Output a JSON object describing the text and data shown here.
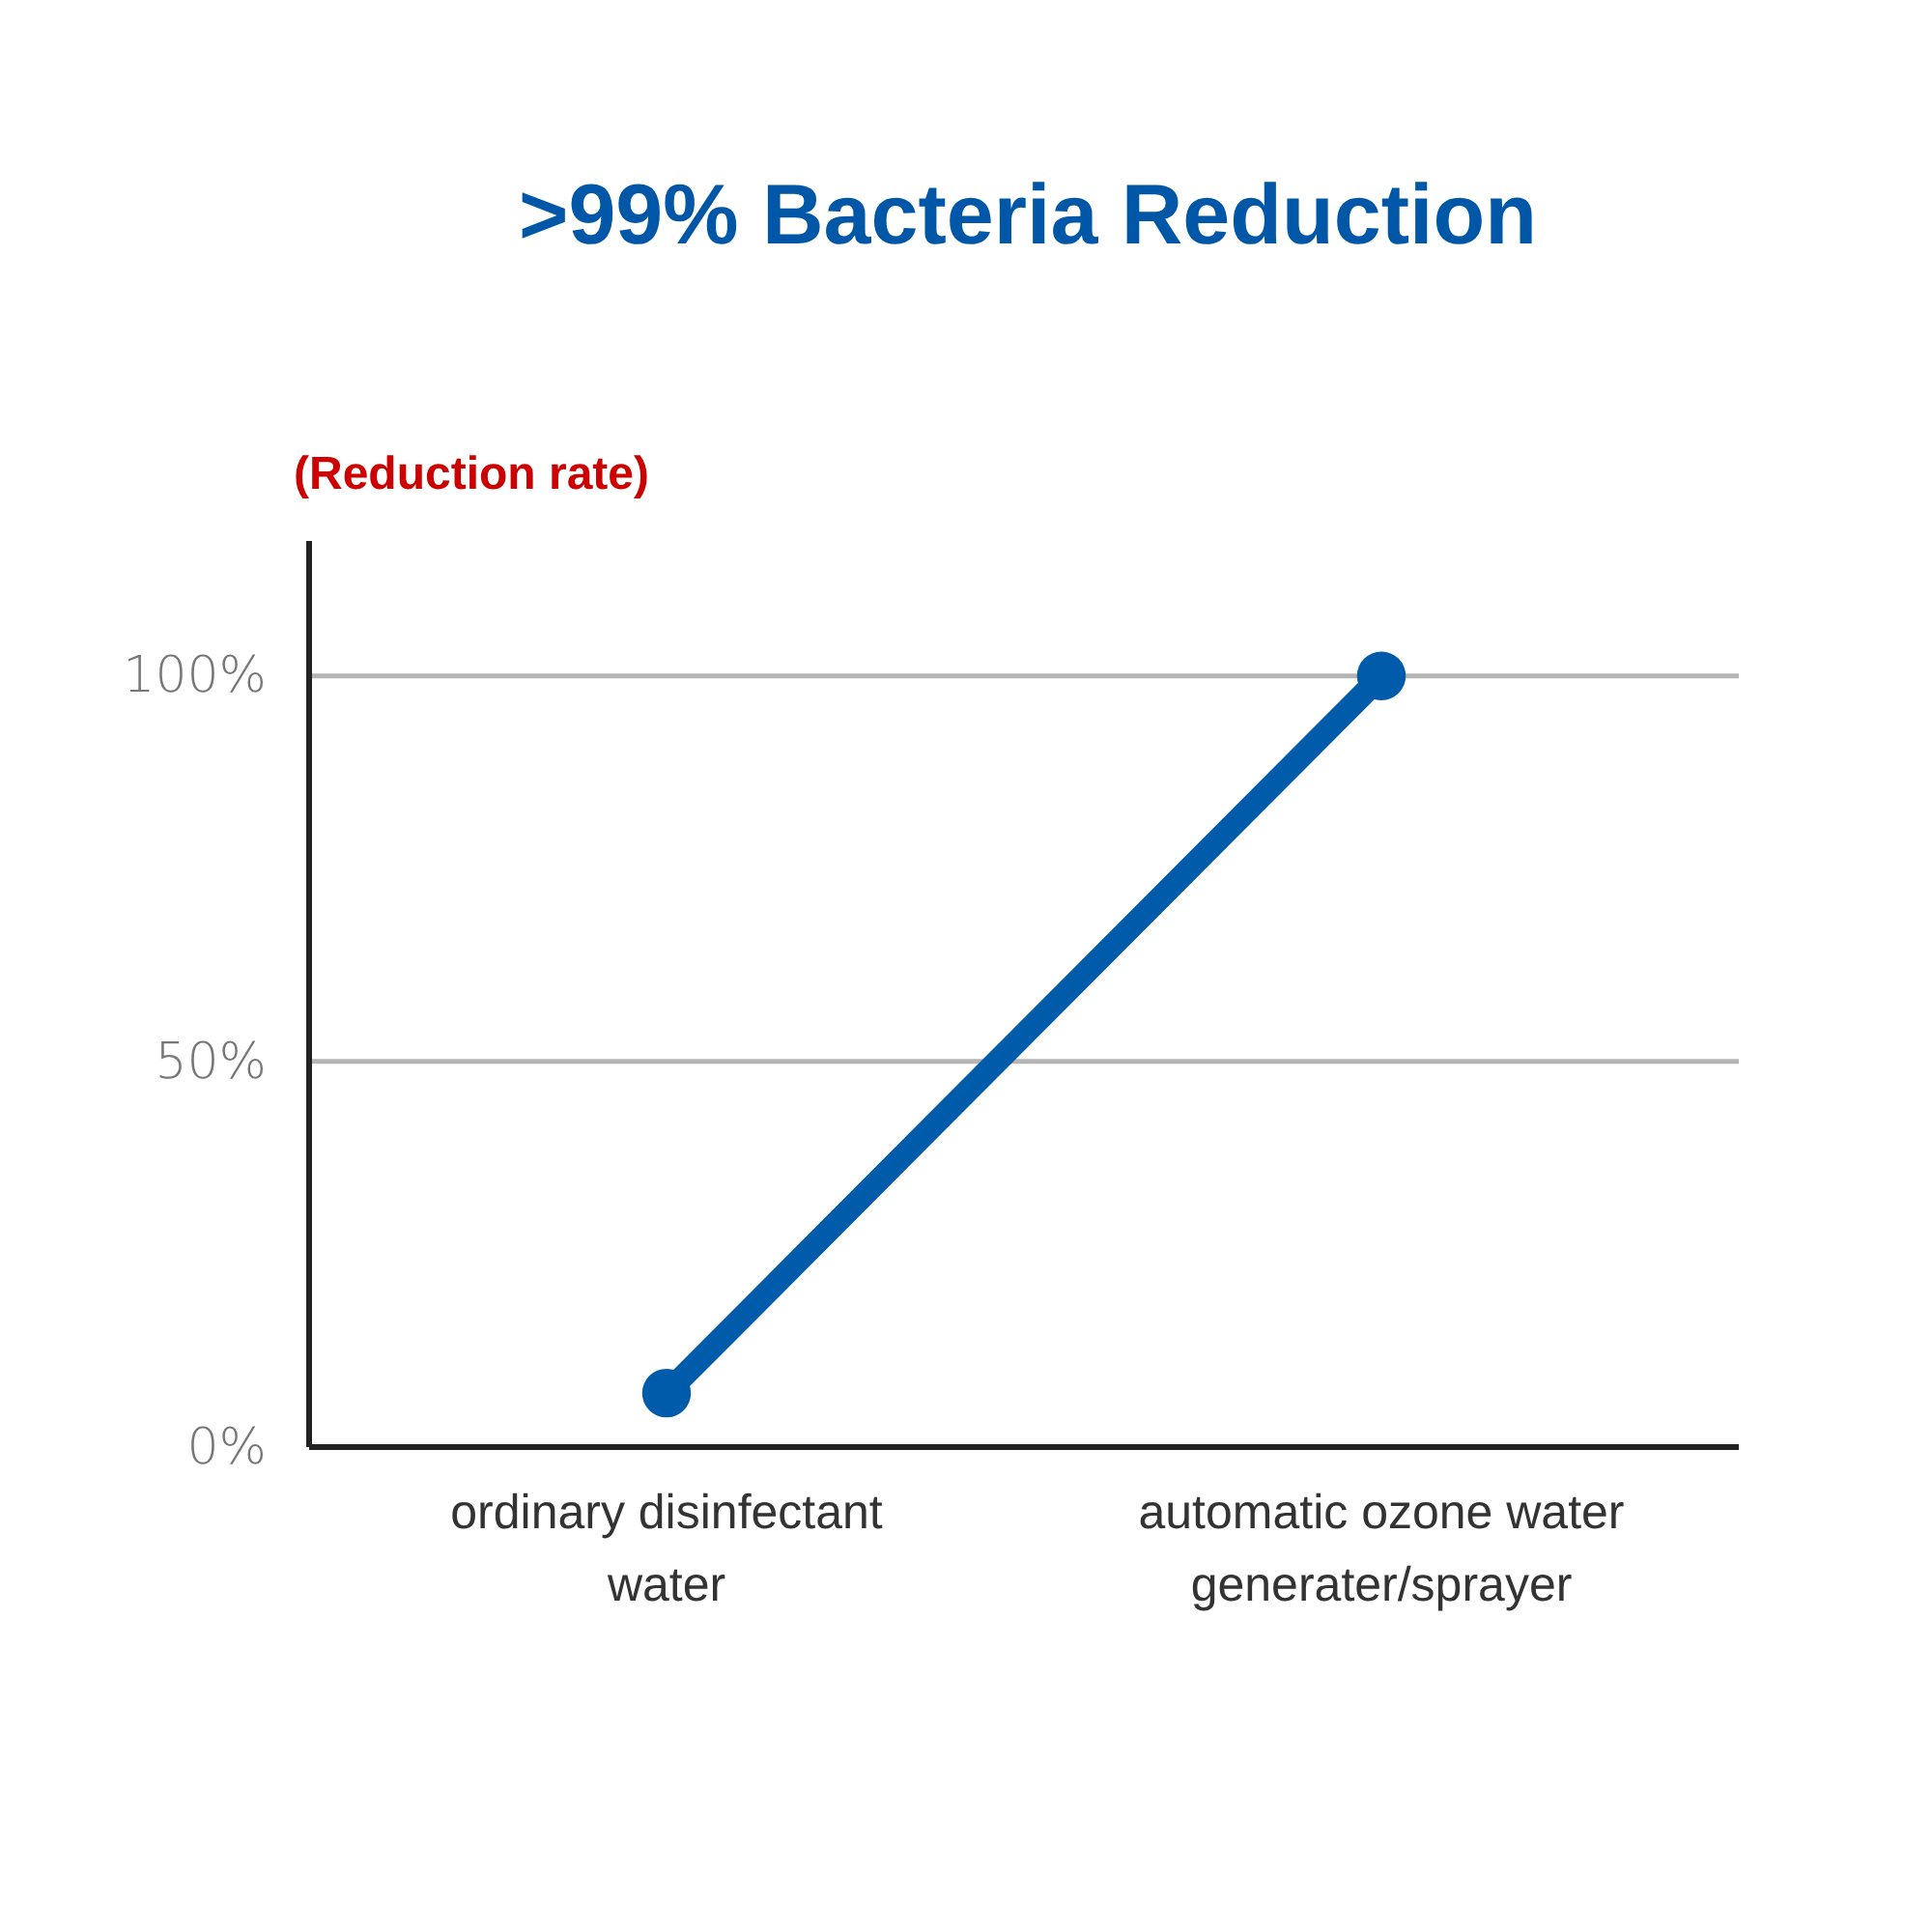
{
  "chart_data": {
    "type": "line",
    "title": ">99% Bacteria Reduction",
    "ylabel": "(Reduction rate)",
    "categories": [
      "ordinary disinfectant water",
      "automatic ozone water generater/sprayer"
    ],
    "series": [
      {
        "color": "#005bab",
        "values": [
          7,
          100
        ]
      }
    ],
    "ylim": [
      0,
      117.5
    ],
    "yticks": [
      {
        "value": 0,
        "label": "0%"
      },
      {
        "value": 50,
        "label": "50%"
      },
      {
        "value": 100,
        "label": "100%"
      }
    ],
    "grid": "y",
    "marker": "circle",
    "line_style": "solid"
  }
}
